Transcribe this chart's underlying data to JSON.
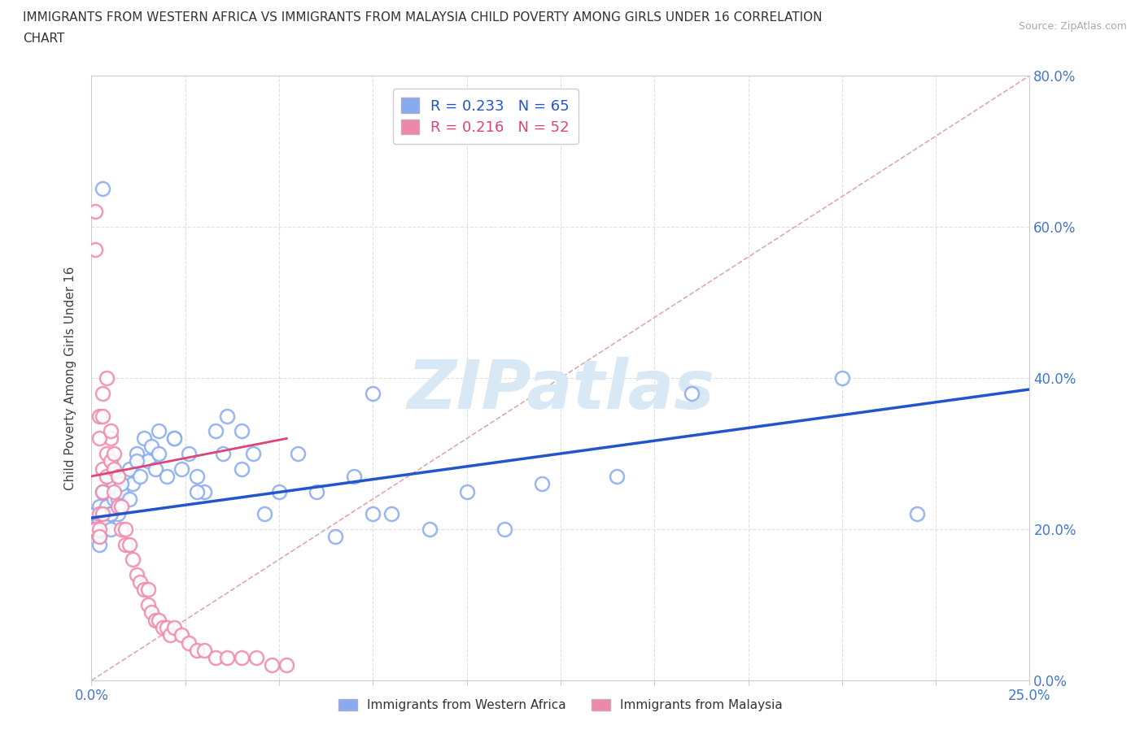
{
  "title_line1": "IMMIGRANTS FROM WESTERN AFRICA VS IMMIGRANTS FROM MALAYSIA CHILD POVERTY AMONG GIRLS UNDER 16 CORRELATION",
  "title_line2": "CHART",
  "source_text": "Source: ZipAtlas.com",
  "ylabel": "Child Poverty Among Girls Under 16",
  "xlim": [
    0.0,
    0.25
  ],
  "ylim": [
    0.0,
    0.8
  ],
  "xtick_vals": [
    0.0,
    0.25
  ],
  "xtick_labels": [
    "0.0%",
    "25.0%"
  ],
  "ytick_vals": [
    0.0,
    0.2,
    0.4,
    0.6,
    0.8
  ],
  "ytick_labels": [
    "0.0%",
    "20.0%",
    "40.0%",
    "60.0%",
    "80.0%"
  ],
  "legend_r1": "R = 0.233",
  "legend_n1": "N = 65",
  "legend_r2": "R = 0.216",
  "legend_n2": "N = 52",
  "color_blue": "#88aaee",
  "color_pink": "#ee88aa",
  "color_blue_line": "#2255cc",
  "color_pink_line": "#dd4477",
  "color_diag": "#ddaaaa",
  "watermark": "ZIPatlas",
  "watermark_color": "#d8e8f5",
  "background_color": "#ffffff",
  "grid_color": "#dddddd",
  "wa_x": [
    0.001,
    0.001,
    0.002,
    0.002,
    0.002,
    0.003,
    0.003,
    0.003,
    0.004,
    0.004,
    0.005,
    0.005,
    0.006,
    0.006,
    0.007,
    0.007,
    0.008,
    0.009,
    0.01,
    0.01,
    0.011,
    0.012,
    0.013,
    0.014,
    0.015,
    0.016,
    0.017,
    0.018,
    0.02,
    0.022,
    0.024,
    0.026,
    0.028,
    0.03,
    0.033,
    0.036,
    0.04,
    0.043,
    0.046,
    0.05,
    0.055,
    0.06,
    0.065,
    0.07,
    0.075,
    0.08,
    0.09,
    0.1,
    0.11,
    0.12,
    0.14,
    0.16,
    0.2,
    0.22,
    0.003,
    0.075,
    0.04,
    0.035,
    0.028,
    0.022,
    0.018,
    0.012,
    0.008,
    0.005,
    0.002
  ],
  "wa_y": [
    0.2,
    0.22,
    0.21,
    0.19,
    0.23,
    0.22,
    0.2,
    0.25,
    0.23,
    0.21,
    0.22,
    0.2,
    0.26,
    0.24,
    0.22,
    0.24,
    0.25,
    0.27,
    0.28,
    0.24,
    0.26,
    0.3,
    0.27,
    0.32,
    0.29,
    0.31,
    0.28,
    0.33,
    0.27,
    0.32,
    0.28,
    0.3,
    0.27,
    0.25,
    0.33,
    0.35,
    0.28,
    0.3,
    0.22,
    0.25,
    0.3,
    0.25,
    0.19,
    0.27,
    0.22,
    0.22,
    0.2,
    0.25,
    0.2,
    0.26,
    0.27,
    0.38,
    0.4,
    0.22,
    0.65,
    0.38,
    0.33,
    0.3,
    0.25,
    0.32,
    0.3,
    0.29,
    0.26,
    0.22,
    0.18
  ],
  "mal_x": [
    0.001,
    0.001,
    0.001,
    0.002,
    0.002,
    0.002,
    0.003,
    0.003,
    0.003,
    0.004,
    0.004,
    0.005,
    0.005,
    0.006,
    0.006,
    0.007,
    0.008,
    0.009,
    0.01,
    0.011,
    0.012,
    0.013,
    0.014,
    0.015,
    0.015,
    0.016,
    0.017,
    0.018,
    0.019,
    0.02,
    0.021,
    0.022,
    0.024,
    0.026,
    0.028,
    0.03,
    0.033,
    0.036,
    0.04,
    0.044,
    0.048,
    0.052,
    0.002,
    0.002,
    0.003,
    0.003,
    0.004,
    0.005,
    0.006,
    0.007,
    0.008,
    0.009
  ],
  "mal_y": [
    0.62,
    0.57,
    0.2,
    0.22,
    0.2,
    0.19,
    0.28,
    0.25,
    0.22,
    0.3,
    0.27,
    0.32,
    0.29,
    0.28,
    0.25,
    0.23,
    0.2,
    0.18,
    0.18,
    0.16,
    0.14,
    0.13,
    0.12,
    0.12,
    0.1,
    0.09,
    0.08,
    0.08,
    0.07,
    0.07,
    0.06,
    0.07,
    0.06,
    0.05,
    0.04,
    0.04,
    0.03,
    0.03,
    0.03,
    0.03,
    0.02,
    0.02,
    0.35,
    0.32,
    0.38,
    0.35,
    0.4,
    0.33,
    0.3,
    0.27,
    0.23,
    0.2
  ],
  "trend_blue_x0": 0.0,
  "trend_blue_x1": 0.25,
  "trend_blue_y0": 0.215,
  "trend_blue_y1": 0.385,
  "trend_pink_x0": 0.0,
  "trend_pink_x1": 0.052,
  "trend_pink_y0": 0.27,
  "trend_pink_y1": 0.32,
  "bottom_label1": "Immigrants from Western Africa",
  "bottom_label2": "Immigrants from Malaysia"
}
